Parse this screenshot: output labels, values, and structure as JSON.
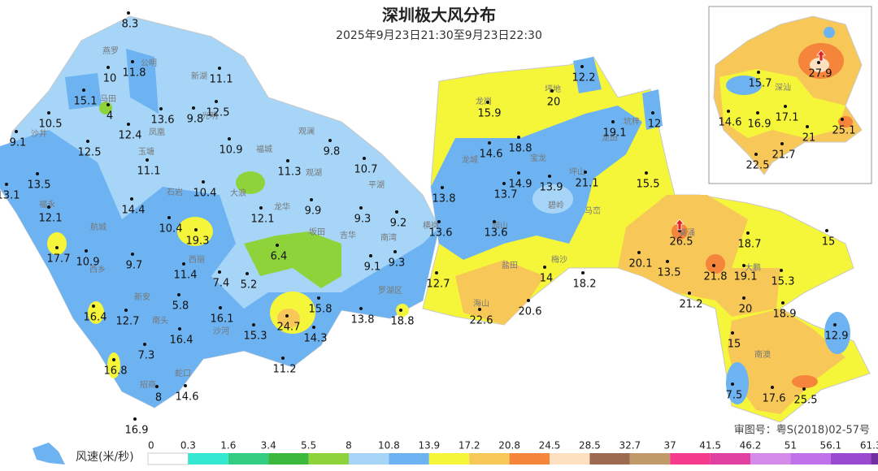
{
  "title": "深圳极大风分布",
  "subtitle": "2025年9月23日21:30至9月23日22:30",
  "stations": [
    8.3,
    10,
    11.8,
    11.1,
    15.1,
    4,
    13.6,
    9.8,
    12.5,
    10.5,
    12.4,
    9.1,
    12.5,
    10.9,
    9.8,
    11.1,
    11.3,
    10.7,
    13.5,
    13.1,
    10.4,
    14.4,
    9.9,
    12.1,
    12.1,
    9.3,
    9.2,
    10.4,
    19.3,
    17.7,
    10.9,
    6.4,
    9.7,
    9.1,
    9.3,
    11.4,
    7.4,
    5.2,
    5.8,
    15.8,
    24.7,
    16.1,
    12.7,
    16.4,
    16.4,
    15.3,
    14.3,
    13.8,
    18.8,
    7.3,
    11.2,
    16.8,
    8,
    14.6,
    16.9,
    12.2,
    20,
    15.9,
    12,
    19.1,
    14.6,
    18.8,
    14.9,
    13.9,
    21.1,
    15.5,
    13.8,
    13.7,
    13.6,
    13.6,
    26.5,
    18.7,
    15,
    12.7,
    14,
    18.2,
    20.1,
    13.5,
    21.8,
    19.1,
    15.3,
    21.2,
    20,
    22.6,
    20.6,
    18.9,
    12.9,
    15,
    17.6,
    25.5,
    7.5
  ],
  "inset_stations": [
    15.7,
    27.9,
    14.6,
    16.9,
    17.1,
    25.1,
    21,
    21.7,
    22.5
  ],
  "places": [
    "燕罗",
    "公明",
    "新湖",
    "马田",
    "光明",
    "凤凰",
    "沙井",
    "观澜",
    "福城",
    "玉塘",
    "石岩",
    "大浪",
    "观湖",
    "平湖",
    "福永",
    "航城",
    "龙华",
    "坂田",
    "吉华",
    "南湾",
    "西乡",
    "西丽",
    "新安",
    "南头",
    "沙河",
    "蛇口",
    "招商",
    "罗湖区",
    "坪地",
    "龙岗",
    "龙城",
    "宝龙",
    "坑梓",
    "龙田",
    "坪山",
    "碧岭",
    "马峦",
    "横岗",
    "园山",
    "盐田",
    "梅沙",
    "葵涌",
    "大鹏",
    "海山",
    "南澳"
  ],
  "inset_places": [
    "深汕"
  ],
  "legend": {
    "title": "风速(米/秒)",
    "breaks": [
      0,
      0.3,
      1.6,
      3.4,
      5.5,
      8,
      10.8,
      13.9,
      17.2,
      20.8,
      24.5,
      28.5,
      32.7,
      37,
      41.5,
      46.2,
      51,
      56.1,
      61.3
    ],
    "colors": [
      "#ffffff",
      "#35e8d2",
      "#32cd80",
      "#3cb83c",
      "#8fd33a",
      "#a6d5f7",
      "#6db3f2",
      "#f5f53a",
      "#f7c858",
      "#f4853a",
      "#fde0c0",
      "#9c6b50",
      "#c09a68",
      "#f53c8c",
      "#e040a0",
      "#d48ae8",
      "#c070e8",
      "#9a4ad0",
      "#7030a0"
    ]
  },
  "approval": "审图号：粤S(2018)02-57号"
}
